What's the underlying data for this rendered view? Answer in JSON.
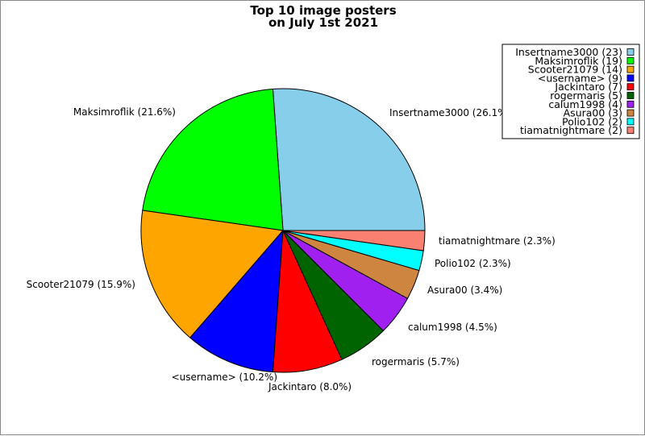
{
  "chart_data": {
    "type": "pie",
    "title": [
      "Top 10 image posters",
      "on July 1st 2021"
    ],
    "slices": [
      {
        "name": "Insertname3000",
        "value": 23,
        "percent_label": "Insertname3000 (26.1%)",
        "legend_label": "Insertname3000 (23)",
        "color": "#87ceeb"
      },
      {
        "name": "Maksimroflik",
        "value": 19,
        "percent_label": "Maksimroflik (21.6%)",
        "legend_label": "Maksimroflik (19)",
        "color": "#00ff00"
      },
      {
        "name": "Scooter21079",
        "value": 14,
        "percent_label": "Scooter21079 (15.9%)",
        "legend_label": "Scooter21079 (14)",
        "color": "#ffa500"
      },
      {
        "name": "<username>",
        "value": 9,
        "percent_label": "<username> (10.2%)",
        "legend_label": "<username> (9)",
        "color": "#0000ff"
      },
      {
        "name": "Jackintaro",
        "value": 7,
        "percent_label": "Jackintaro (8.0%)",
        "legend_label": "Jackintaro (7)",
        "color": "#ff0000"
      },
      {
        "name": "rogermaris",
        "value": 5,
        "percent_label": "rogermaris (5.7%)",
        "legend_label": "rogermaris (5)",
        "color": "#006400"
      },
      {
        "name": "calum1998",
        "value": 4,
        "percent_label": "calum1998 (4.5%)",
        "legend_label": "calum1998 (4)",
        "color": "#a020f0"
      },
      {
        "name": "Asura00",
        "value": 3,
        "percent_label": "Asura00 (3.4%)",
        "legend_label": "Asura00 (3)",
        "color": "#cd853f"
      },
      {
        "name": "Polio102",
        "value": 2,
        "percent_label": "Polio102 (2.3%)",
        "legend_label": "Polio102 (2)",
        "color": "#00ffff"
      },
      {
        "name": "tiamatnightmare",
        "value": 2,
        "percent_label": "tiamatnightmare (2.3%)",
        "legend_label": "tiamatnightmare (2)",
        "color": "#fa8072"
      }
    ],
    "legend_placement": "top-right"
  }
}
